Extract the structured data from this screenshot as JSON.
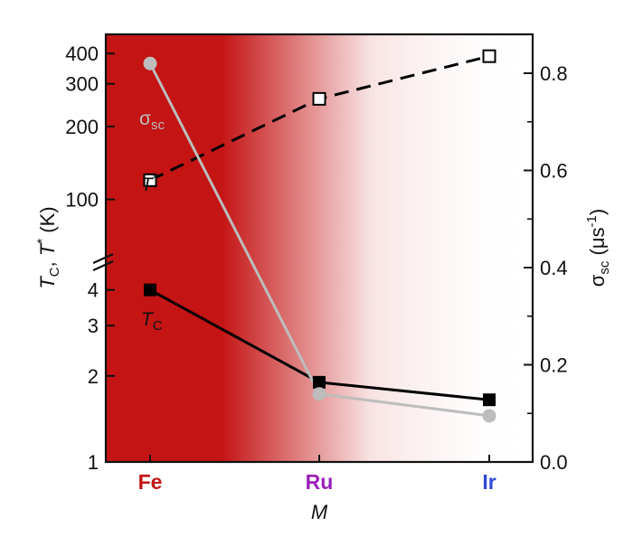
{
  "chart_data": {
    "type": "line",
    "categories": [
      "Fe",
      "Ru",
      "Ir"
    ],
    "category_colors": [
      "#c41414",
      "#9a1fb8",
      "#2d48d8"
    ],
    "xlabel": "M",
    "left_axis": {
      "label_main": "T",
      "label_sub1": "C",
      "label_sep": ", ",
      "label_sup": "*",
      "label_unit": " (K)",
      "scale": "broken-log",
      "lower_range": [
        1,
        5
      ],
      "upper_range": [
        60,
        480
      ],
      "lower_ticks": [
        1,
        2,
        3,
        4
      ],
      "lower_tick_labels": [
        "1",
        "2",
        "3",
        "4"
      ],
      "upper_ticks": [
        100,
        200,
        300,
        400
      ],
      "upper_tick_labels": [
        "100",
        "200",
        "300",
        "400"
      ]
    },
    "right_axis": {
      "label_main": "σ",
      "label_sub": "sc",
      "label_unit_open": " (μs",
      "label_unit_sup": "-1",
      "label_unit_close": ")",
      "ylim": [
        0,
        0.88
      ],
      "ticks": [
        0.0,
        0.2,
        0.4,
        0.6,
        0.8
      ],
      "tick_labels": [
        "0.0",
        "0.2",
        "0.4",
        "0.6",
        "0.8"
      ]
    },
    "series": [
      {
        "name": "T*",
        "axis": "left",
        "values": [
          120,
          260,
          390
        ],
        "color": "#000000",
        "line_style": "dashed",
        "marker": "open-square",
        "label_main": "T",
        "label_sup": "*"
      },
      {
        "name": "TC",
        "axis": "left",
        "values": [
          4.0,
          1.9,
          1.65
        ],
        "color": "#000000",
        "line_style": "solid",
        "marker": "filled-square",
        "label_main": "T",
        "label_sub": "C"
      },
      {
        "name": "σsc",
        "axis": "right",
        "values": [
          0.82,
          0.14,
          0.095
        ],
        "color": "#bdbdbd",
        "line_style": "solid",
        "marker": "filled-circle",
        "label_main": "σ",
        "label_sub": "sc"
      }
    ],
    "background_gradient": {
      "color": "#c41414",
      "solid_until": "Fe"
    },
    "legend": "none",
    "grid": false
  }
}
